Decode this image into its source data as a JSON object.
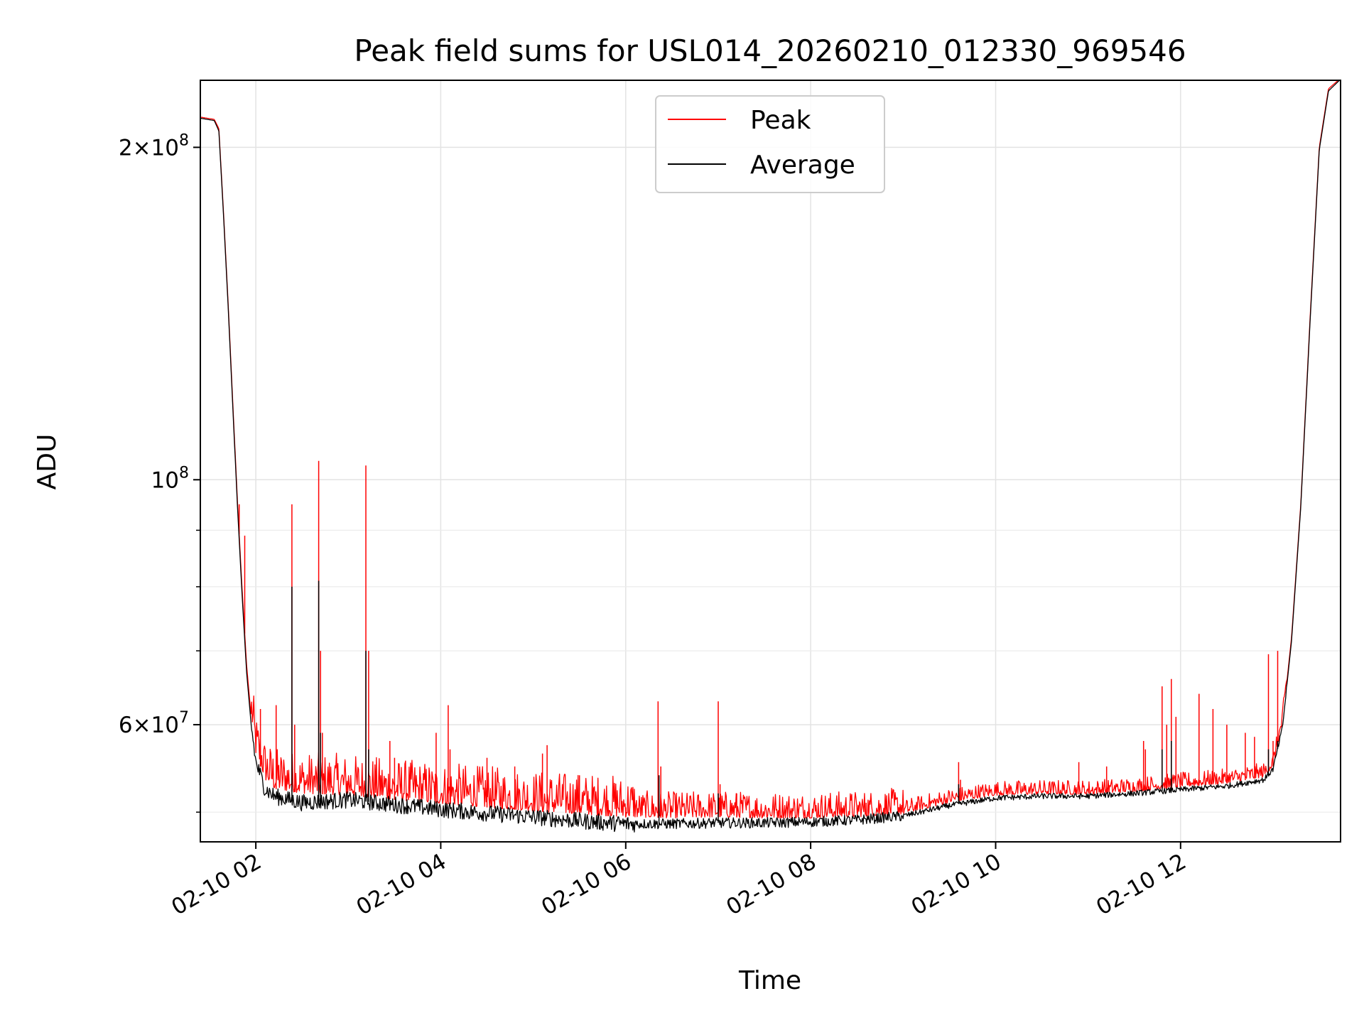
{
  "chart_data": {
    "type": "line",
    "title": "Peak field sums for USL014_20260210_012330_969546",
    "xlabel": "Time",
    "ylabel": "ADU",
    "yscale": "log",
    "x_units": "hours since 2026-02-10 00:00",
    "xlim": [
      1.4,
      13.73
    ],
    "ylim": [
      47000000,
      230000000
    ],
    "grid": true,
    "legend_position": "top-center",
    "x_ticks": [
      {
        "value": 2,
        "label": "02-10 02"
      },
      {
        "value": 4,
        "label": "02-10 04"
      },
      {
        "value": 6,
        "label": "02-10 06"
      },
      {
        "value": 8,
        "label": "02-10 08"
      },
      {
        "value": 10,
        "label": "02-10 10"
      },
      {
        "value": 12,
        "label": "02-10 12"
      }
    ],
    "y_ticks": [
      {
        "value": 60000000,
        "mantissa": "6",
        "base": "10",
        "exponent": "7"
      },
      {
        "value": 100000000,
        "mantissa": "",
        "base": "10",
        "exponent": "8"
      },
      {
        "value": 200000000,
        "mantissa": "2",
        "base": "10",
        "exponent": "8"
      }
    ],
    "y_minor_ticks": [
      50000000,
      70000000,
      80000000,
      90000000
    ],
    "series": [
      {
        "name": "Peak",
        "color": "#ff0000",
        "baseline": [
          [
            1.4,
            213000000
          ],
          [
            1.55,
            212000000
          ],
          [
            1.6,
            208000000
          ],
          [
            1.65,
            175000000
          ],
          [
            1.7,
            145000000
          ],
          [
            1.75,
            118000000
          ],
          [
            1.8,
            96000000
          ],
          [
            1.85,
            80000000
          ],
          [
            1.9,
            68000000
          ],
          [
            1.95,
            61000000
          ],
          [
            2.0,
            56500000
          ],
          [
            2.1,
            53500000
          ],
          [
            2.2,
            52500000
          ],
          [
            2.5,
            52000000
          ],
          [
            3.0,
            51800000
          ],
          [
            3.5,
            51300000
          ],
          [
            4.0,
            50900000
          ],
          [
            4.5,
            50500000
          ],
          [
            5.0,
            50100000
          ],
          [
            5.5,
            49800000
          ],
          [
            6.0,
            49500000
          ],
          [
            6.5,
            49400000
          ],
          [
            7.0,
            49500000
          ],
          [
            7.5,
            49400000
          ],
          [
            8.0,
            49400000
          ],
          [
            8.5,
            49500000
          ],
          [
            9.0,
            49800000
          ],
          [
            9.5,
            51000000
          ],
          [
            10.0,
            51800000
          ],
          [
            10.5,
            51900000
          ],
          [
            11.0,
            51900000
          ],
          [
            11.5,
            52200000
          ],
          [
            12.0,
            52700000
          ],
          [
            12.5,
            53100000
          ],
          [
            12.9,
            53800000
          ],
          [
            13.0,
            55000000
          ],
          [
            13.1,
            60000000
          ],
          [
            13.2,
            72000000
          ],
          [
            13.3,
            95000000
          ],
          [
            13.4,
            140000000
          ],
          [
            13.5,
            200000000
          ],
          [
            13.6,
            226000000
          ],
          [
            13.73,
            231000000
          ]
        ],
        "spikes": [
          [
            1.82,
            95000000
          ],
          [
            1.88,
            89000000
          ],
          [
            2.05,
            62000000
          ],
          [
            2.22,
            62500000
          ],
          [
            2.39,
            95000000
          ],
          [
            2.42,
            60000000
          ],
          [
            2.68,
            104000000
          ],
          [
            2.7,
            70000000
          ],
          [
            2.72,
            59000000
          ],
          [
            3.19,
            103000000
          ],
          [
            3.22,
            70000000
          ],
          [
            3.45,
            58000000
          ],
          [
            3.5,
            56000000
          ],
          [
            3.95,
            59000000
          ],
          [
            4.08,
            62500000
          ],
          [
            4.1,
            57000000
          ],
          [
            4.5,
            56000000
          ],
          [
            4.8,
            55000000
          ],
          [
            5.1,
            56500000
          ],
          [
            5.15,
            57500000
          ],
          [
            5.5,
            54000000
          ],
          [
            5.7,
            53500000
          ],
          [
            6.0,
            50500000
          ],
          [
            6.35,
            63000000
          ],
          [
            6.38,
            55000000
          ],
          [
            7.0,
            63000000
          ],
          [
            7.02,
            53000000
          ],
          [
            7.2,
            52000000
          ],
          [
            8.6,
            51000000
          ],
          [
            9.6,
            55500000
          ],
          [
            9.62,
            53500000
          ],
          [
            10.9,
            55500000
          ],
          [
            11.2,
            55000000
          ],
          [
            11.6,
            58000000
          ],
          [
            11.62,
            57000000
          ],
          [
            11.8,
            65000000
          ],
          [
            11.85,
            60000000
          ],
          [
            11.9,
            66000000
          ],
          [
            11.95,
            61000000
          ],
          [
            12.2,
            64000000
          ],
          [
            12.35,
            62000000
          ],
          [
            12.5,
            60000000
          ],
          [
            12.7,
            59000000
          ],
          [
            12.8,
            58500000
          ],
          [
            12.95,
            69500000
          ],
          [
            13.0,
            58000000
          ],
          [
            13.05,
            70000000
          ],
          [
            13.1,
            60000000
          ]
        ]
      },
      {
        "name": "Average",
        "color": "#000000",
        "baseline": [
          [
            1.4,
            212500000
          ],
          [
            1.55,
            211500000
          ],
          [
            1.6,
            207000000
          ],
          [
            1.65,
            174000000
          ],
          [
            1.7,
            144000000
          ],
          [
            1.75,
            117000000
          ],
          [
            1.8,
            95000000
          ],
          [
            1.85,
            79000000
          ],
          [
            1.9,
            67000000
          ],
          [
            1.95,
            60000000
          ],
          [
            2.0,
            55500000
          ],
          [
            2.1,
            52500000
          ],
          [
            2.2,
            51700000
          ],
          [
            2.5,
            51000000
          ],
          [
            3.0,
            51300000
          ],
          [
            3.5,
            50800000
          ],
          [
            4.0,
            50300000
          ],
          [
            4.5,
            49900000
          ],
          [
            5.0,
            49500000
          ],
          [
            5.5,
            49100000
          ],
          [
            6.0,
            48800000
          ],
          [
            6.5,
            48800000
          ],
          [
            7.0,
            48900000
          ],
          [
            7.5,
            48900000
          ],
          [
            8.0,
            49000000
          ],
          [
            8.5,
            49200000
          ],
          [
            9.0,
            49600000
          ],
          [
            9.5,
            50700000
          ],
          [
            10.0,
            51500000
          ],
          [
            10.5,
            51700000
          ],
          [
            11.0,
            51700000
          ],
          [
            11.5,
            52000000
          ],
          [
            12.0,
            52400000
          ],
          [
            12.5,
            52800000
          ],
          [
            12.9,
            53500000
          ],
          [
            13.0,
            54700000
          ],
          [
            13.1,
            59500000
          ],
          [
            13.2,
            71500000
          ],
          [
            13.3,
            94500000
          ],
          [
            13.4,
            139000000
          ],
          [
            13.5,
            199000000
          ],
          [
            13.6,
            225000000
          ],
          [
            13.73,
            230500000
          ]
        ],
        "spikes": [
          [
            2.39,
            80000000
          ],
          [
            2.68,
            81000000
          ],
          [
            2.7,
            59000000
          ],
          [
            3.19,
            70000000
          ],
          [
            3.22,
            57000000
          ],
          [
            6.36,
            54000000
          ],
          [
            7.0,
            52000000
          ],
          [
            9.6,
            53000000
          ],
          [
            11.8,
            57000000
          ],
          [
            11.9,
            58000000
          ],
          [
            12.95,
            57000000
          ],
          [
            13.05,
            58000000
          ]
        ]
      }
    ]
  }
}
